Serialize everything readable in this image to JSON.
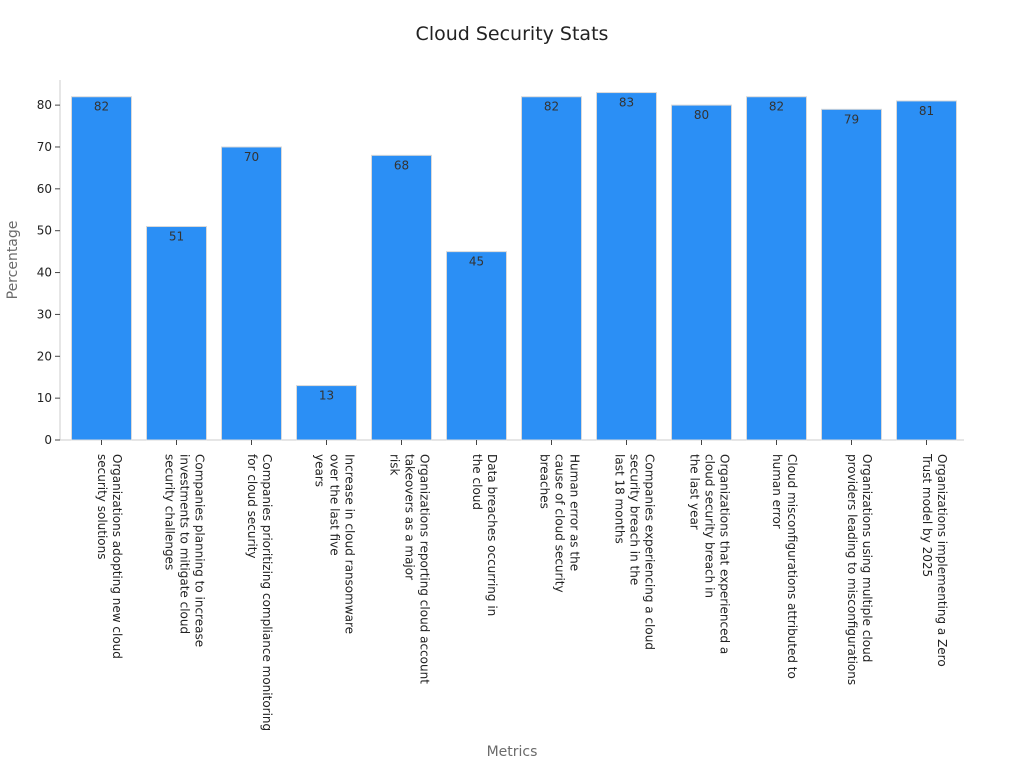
{
  "chart_data": {
    "type": "bar",
    "title": "Cloud Security Stats",
    "xlabel": "Metrics",
    "ylabel": "Percentage",
    "ylim": [
      0,
      86
    ],
    "yticks": [
      0,
      10,
      20,
      30,
      40,
      50,
      60,
      70,
      80
    ],
    "grid": false,
    "bar_color": "#2b8ff5",
    "bar_edge_color": "#d9d9d9",
    "categories": [
      [
        "Organizations adopting new cloud",
        "security solutions"
      ],
      [
        "Companies planning to increase",
        "investments to mitigate cloud",
        "security challenges"
      ],
      [
        "Companies prioritizing compliance monitoring",
        "for cloud security"
      ],
      [
        "Increase in cloud ransomware",
        "over the last five",
        "years"
      ],
      [
        "Organizations reporting cloud account",
        "takeovers as a major",
        "risk"
      ],
      [
        "Data breaches occurring in",
        "the cloud"
      ],
      [
        "Human error as the",
        "cause of cloud security",
        "breaches"
      ],
      [
        "Companies experiencing a cloud",
        "security breach in the",
        "last 18 months"
      ],
      [
        "Organizations that experienced a",
        "cloud security breach in",
        "the last year"
      ],
      [
        "Cloud misconfigurations attributed to",
        "human error"
      ],
      [
        "Organizations using multiple cloud",
        "providers leading to misconfigurations"
      ],
      [
        "Organizations implementing a Zero",
        "Trust model by 2025"
      ]
    ],
    "values": [
      82,
      51,
      70,
      13,
      68,
      45,
      82,
      83,
      80,
      82,
      79,
      81
    ],
    "data_labels": [
      "82",
      "51",
      "70",
      "13",
      "68",
      "45",
      "82",
      "83",
      "80",
      "82",
      "79",
      "81"
    ]
  }
}
